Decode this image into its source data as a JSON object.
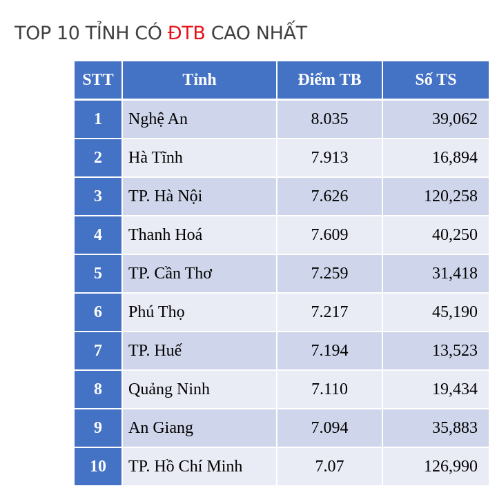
{
  "title": {
    "before": "TOP 10 TỈNH CÓ ",
    "highlight": "ĐTB",
    "after": " CAO NHẤT",
    "highlight_color": "#e8121a"
  },
  "table": {
    "headers": [
      "STT",
      "Tỉnh",
      "Điểm TB",
      "Số TS"
    ],
    "header_color": "#4472c4",
    "row_colors": [
      "#cfd5ea",
      "#e9ebf5"
    ],
    "rows": [
      [
        "1",
        "Nghệ An",
        "8.035",
        "39,062"
      ],
      [
        "2",
        "Hà Tĩnh",
        "7.913",
        "16,894"
      ],
      [
        "3",
        "TP. Hà Nội",
        "7.626",
        "120,258"
      ],
      [
        "4",
        "Thanh Hoá",
        "7.609",
        "40,250"
      ],
      [
        "5",
        "TP. Cần Thơ",
        "7.259",
        "31,418"
      ],
      [
        "6",
        "Phú Thọ",
        "7.217",
        "45,190"
      ],
      [
        "7",
        "TP. Huế",
        "7.194",
        "13,523"
      ],
      [
        "8",
        "Quảng Ninh",
        "7.110",
        "19,434"
      ],
      [
        "9",
        "An Giang",
        "7.094",
        "35,883"
      ],
      [
        "10",
        "TP. Hồ Chí Minh",
        "7.07",
        "126,990"
      ]
    ]
  }
}
